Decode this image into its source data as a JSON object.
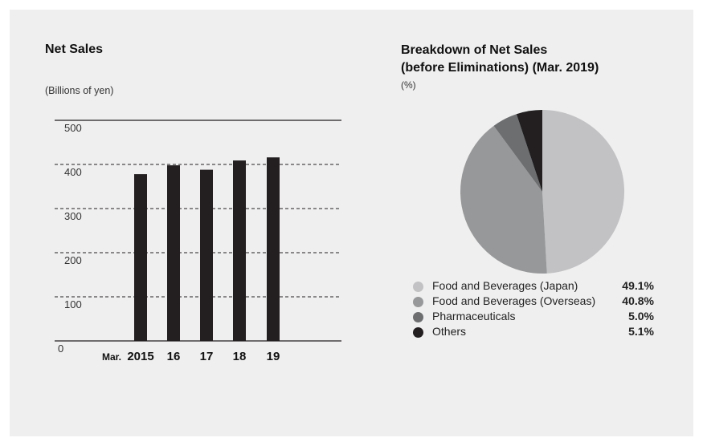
{
  "charts": {
    "net_sales": {
      "title": "Net Sales",
      "unit": "(Billions of yen)",
      "year_prefix": "Mar."
    },
    "breakdown": {
      "title_line1": "Breakdown of Net Sales",
      "title_line2": "(before Eliminations) (Mar. 2019)",
      "unit": "(%)"
    }
  },
  "chart_data": [
    {
      "type": "bar",
      "title": "Net Sales",
      "ylabel": "(Billions of yen)",
      "categories": [
        "2015",
        "16",
        "17",
        "18",
        "19"
      ],
      "values": [
        378,
        398,
        388,
        409,
        416
      ],
      "ylim": [
        0,
        500
      ],
      "yticks": [
        0,
        100,
        200,
        300,
        400,
        500
      ],
      "grid": "dashed-horizontal",
      "color": "#231f20"
    },
    {
      "type": "pie",
      "title": "Breakdown of Net Sales (before Eliminations) (Mar. 2019)",
      "unit": "(%)",
      "slices": [
        {
          "label": "Food and Beverages (Japan)",
          "value": 49.1,
          "display": "49.1%",
          "color": "#c2c2c4"
        },
        {
          "label": "Food and Beverages (Overseas)",
          "value": 40.8,
          "display": "40.8%",
          "color": "#97989a"
        },
        {
          "label": "Pharmaceuticals",
          "value": 5.0,
          "display": "5.0%",
          "color": "#6d6e70"
        },
        {
          "label": "Others",
          "value": 5.1,
          "display": "5.1%",
          "color": "#231f20"
        }
      ],
      "legend_position": "bottom"
    }
  ]
}
